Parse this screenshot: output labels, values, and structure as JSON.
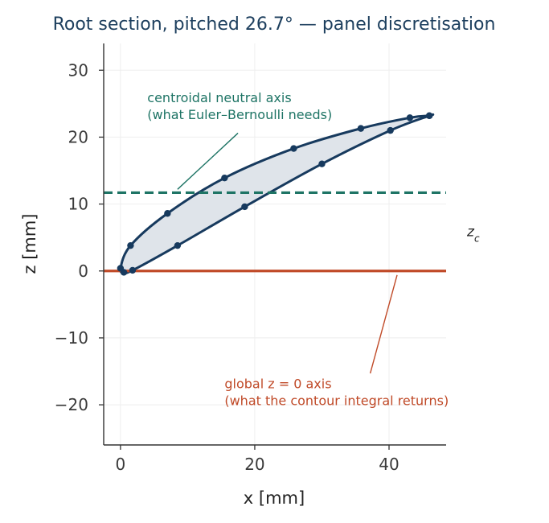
{
  "chart_data": {
    "type": "scatter",
    "title": "Root section, pitched 26.7°  —  panel discretisation",
    "xlabel": "x [mm]",
    "ylabel": "z [mm]",
    "xlim": [
      -2.5,
      48.5
    ],
    "ylim": [
      -26,
      34
    ],
    "xticks": [
      0,
      20,
      40
    ],
    "yticks": [
      -20,
      -10,
      0,
      10,
      20,
      30
    ],
    "x_tick_labels": [
      "0",
      "20",
      "40"
    ],
    "y_tick_labels": [
      "−20",
      "−10",
      "0",
      "10",
      "20",
      "30"
    ],
    "grid": true,
    "series": [
      {
        "role": "upper-surface-nodes",
        "color": "#173a5e",
        "x": [
          0.0,
          1.5,
          7.0,
          15.5,
          25.8,
          35.8,
          43.1,
          46.0
        ],
        "z": [
          0.4,
          3.8,
          8.6,
          13.9,
          18.3,
          21.3,
          22.9,
          23.2
        ]
      },
      {
        "role": "lower-surface-nodes",
        "color": "#173a5e",
        "x": [
          0.5,
          1.8,
          8.5,
          18.5,
          30.0,
          40.2,
          46.0
        ],
        "z": [
          -0.2,
          0.1,
          3.8,
          9.6,
          16.0,
          21.0,
          23.2
        ]
      }
    ],
    "centroid_z": 11.7,
    "centroid_label": "z_c",
    "colors": {
      "section_outline": "#173a5e",
      "section_fill": "#dfe4ea",
      "centroid_line": "#1e7465",
      "zero_line": "#c04a28",
      "grid": "#eeeeee",
      "axis": "#333333"
    },
    "annotations": [
      {
        "role": "centroid",
        "lines": [
          "centroidal neutral axis",
          "(what Euler–Bernoulli needs)"
        ],
        "color": "#1e7465",
        "text_at": [
          4.0,
          25.2
        ],
        "arrow_from": [
          17.5,
          20.6
        ],
        "arrow_to": [
          8.5,
          12.2
        ]
      },
      {
        "role": "zero",
        "lines": [
          "global z = 0 axis",
          "(what the contour integral returns)"
        ],
        "color": "#c04a28",
        "text_at": [
          15.5,
          -17.5
        ],
        "arrow_from": [
          37.2,
          -15.3
        ],
        "arrow_to": [
          41.2,
          -0.6
        ]
      }
    ]
  }
}
